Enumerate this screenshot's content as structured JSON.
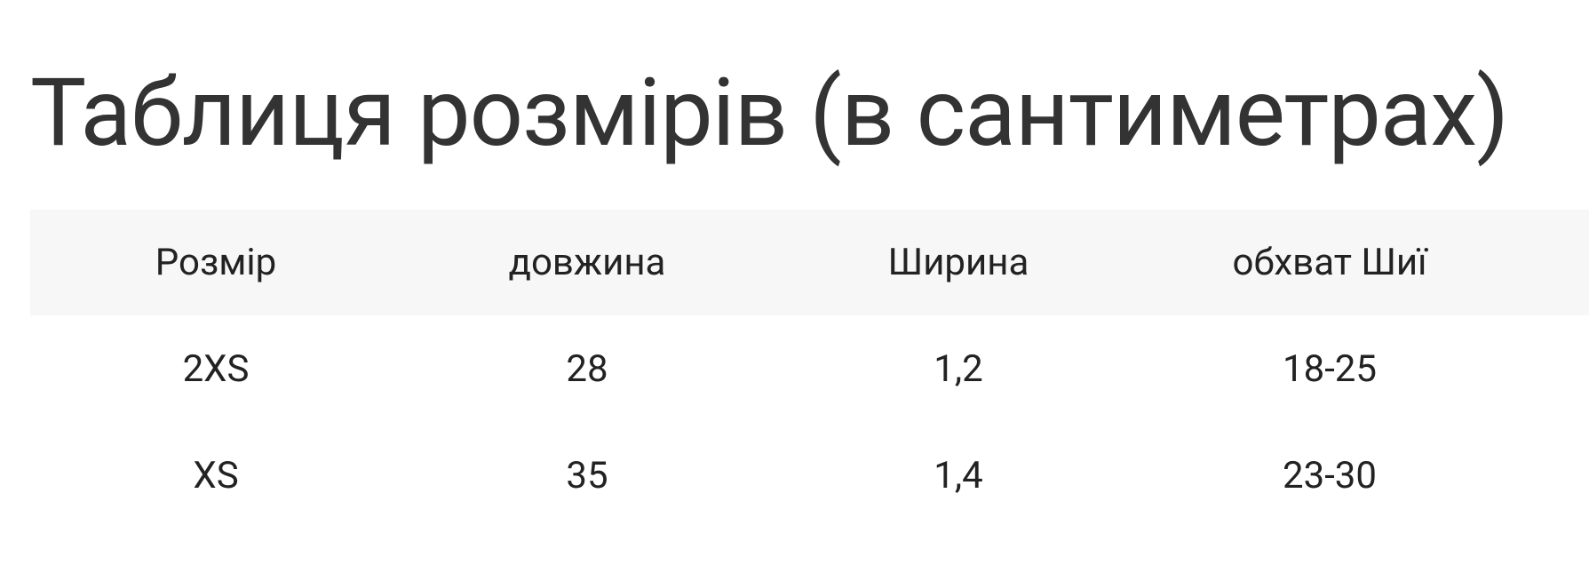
{
  "title": "Таблиця розмірів (в сантиметрах)",
  "table": {
    "header": [
      "Розмір",
      "довжина",
      "Ширина",
      "обхват Шиї"
    ],
    "rows": [
      [
        "2XS",
        "28",
        "1,2",
        "18-25"
      ],
      [
        "XS",
        "35",
        "1,4",
        "23-30"
      ]
    ]
  }
}
